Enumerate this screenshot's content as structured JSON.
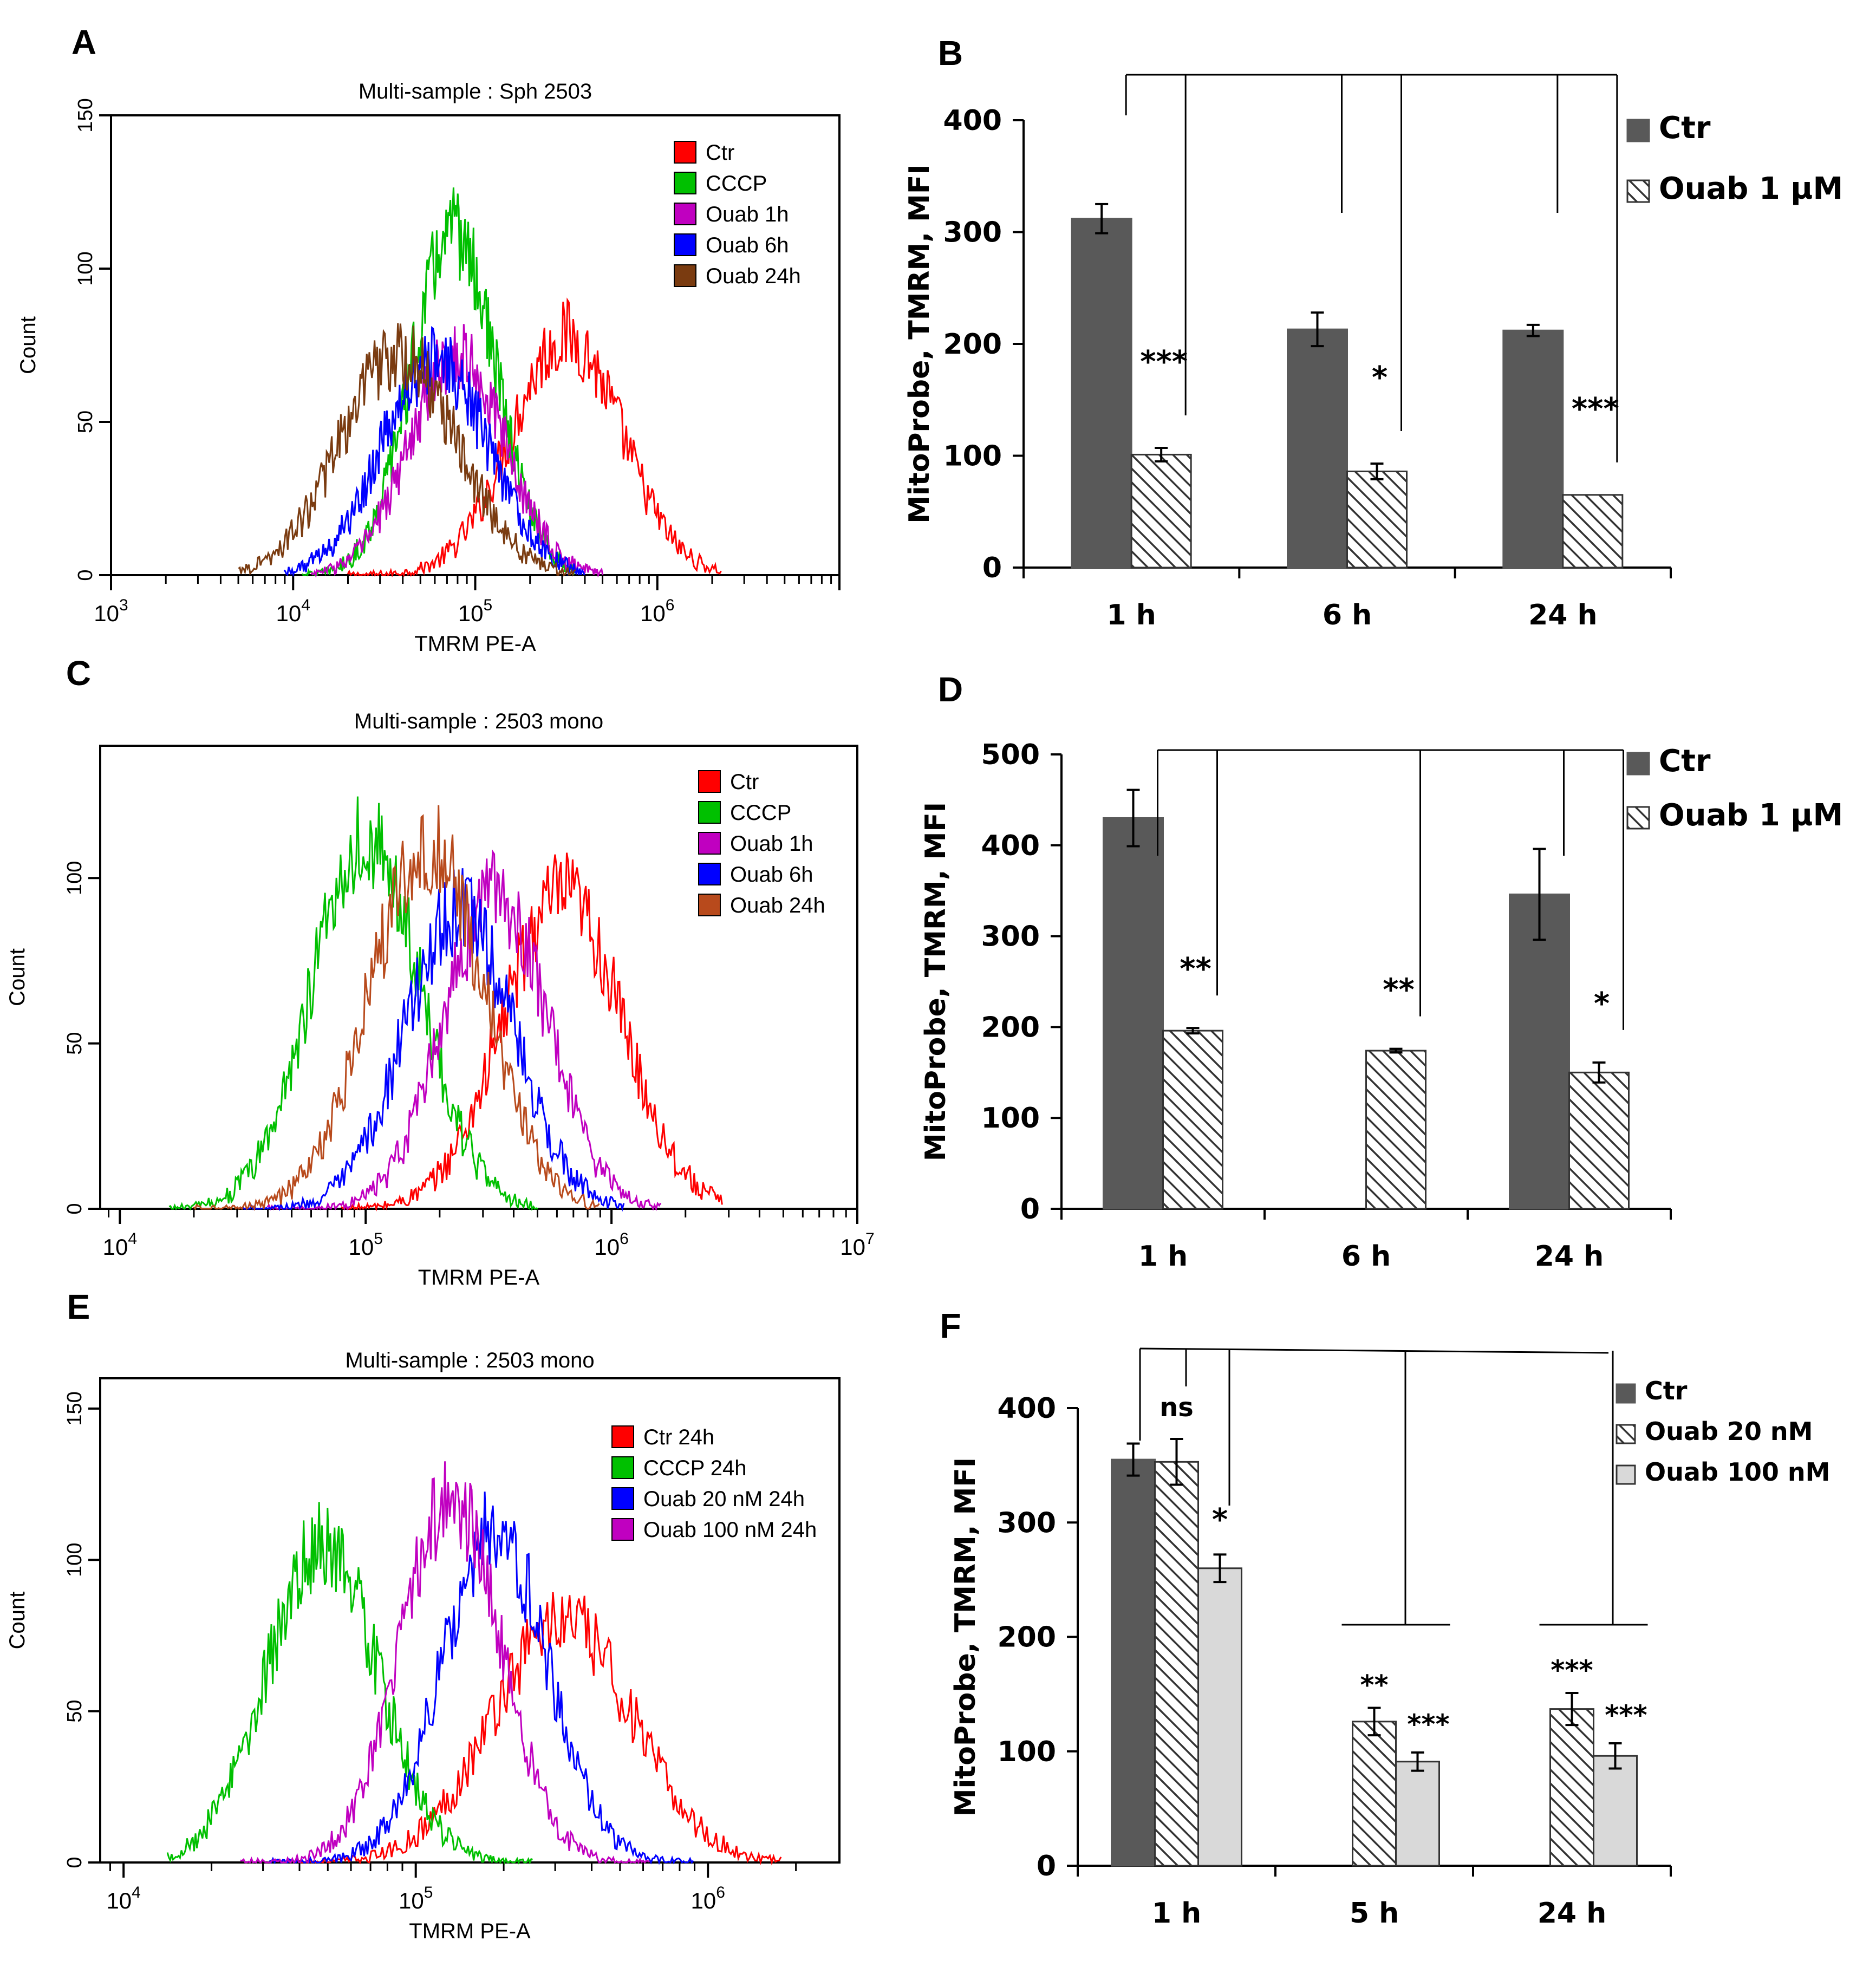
{
  "colors": {
    "ctr_hist": "#ff0000",
    "cccp_hist": "#00c000",
    "ouab1h_hist": "#c000c0",
    "ouab6h_hist": "#0000ff",
    "ouab24h_hist": "#7a3b10",
    "ctr_bar": "#595959",
    "light_bar": "#d9d9d9",
    "hatch_line": "#333333"
  },
  "chart_data": [
    {
      "id": "A",
      "panel_label": "A",
      "type": "line",
      "title": "Multi-sample : Sph 2503",
      "xlabel": "TMRM PE-A",
      "ylabel": "Count",
      "xscale": "log",
      "xlim_log10": [
        3,
        7
      ],
      "xticks": [
        3,
        4,
        5,
        6
      ],
      "ylim": [
        0,
        150
      ],
      "yticks": [
        0,
        50,
        100,
        150
      ],
      "legend_position": "top-right",
      "series": [
        {
          "name": "Ctr",
          "color": "#ff0000",
          "peak_log10": 5.5,
          "width": 0.3,
          "peak": 78,
          "start_log10": 4.3,
          "end_log10": 6.35
        },
        {
          "name": "CCCP",
          "color": "#00c000",
          "peak_log10": 4.88,
          "width": 0.23,
          "peak": 112,
          "start_log10": 4.05,
          "end_log10": 5.55
        },
        {
          "name": "Ouab 1h",
          "color": "#c000c0",
          "peak_log10": 4.9,
          "width": 0.26,
          "peak": 72,
          "start_log10": 4.1,
          "end_log10": 5.7
        },
        {
          "name": "Ouab 6h",
          "color": "#0000ff",
          "peak_log10": 4.78,
          "width": 0.29,
          "peak": 70,
          "start_log10": 3.95,
          "end_log10": 5.6
        },
        {
          "name": "Ouab 24h",
          "color": "#7a3b10",
          "peak_log10": 4.58,
          "width": 0.32,
          "peak": 72,
          "start_log10": 3.7,
          "end_log10": 5.55
        }
      ]
    },
    {
      "id": "B",
      "panel_label": "B",
      "type": "bar",
      "categories": [
        "1 h",
        "6 h",
        "24 h"
      ],
      "ylabel": "MitoProbe, TMRM, MFI",
      "ylim": [
        0,
        400
      ],
      "yticks": [
        0,
        100,
        200,
        300,
        400
      ],
      "legend_position": "top-right",
      "series": [
        {
          "name": "Ctr",
          "style": "solid",
          "values": [
            312,
            213,
            212
          ],
          "errors": [
            13,
            15,
            5
          ]
        },
        {
          "name": "Ouab 1 µM",
          "style": "hatch",
          "values": [
            101,
            86,
            65
          ],
          "errors": [
            6,
            7,
            0
          ]
        }
      ],
      "significance": [
        "***",
        "*",
        "***"
      ]
    },
    {
      "id": "C",
      "panel_label": "C",
      "type": "line",
      "title": "Multi-sample : 2503 mono",
      "xlabel": "TMRM PE-A",
      "ylabel": "Count",
      "xscale": "log",
      "xlim_log10": [
        3.92,
        7
      ],
      "xticks": [
        4,
        5,
        6,
        7
      ],
      "ylim": [
        0,
        140
      ],
      "yticks": [
        0,
        50,
        100
      ],
      "legend_position": "top-right",
      "series": [
        {
          "name": "Ctr",
          "color": "#ff0000",
          "peak_log10": 5.8,
          "width": 0.24,
          "peak": 95,
          "start_log10": 4.9,
          "end_log10": 6.45
        },
        {
          "name": "CCCP",
          "color": "#00c000",
          "peak_log10": 5.0,
          "width": 0.22,
          "peak": 112,
          "start_log10": 4.2,
          "end_log10": 5.7
        },
        {
          "name": "Ouab 1h",
          "color": "#c000c0",
          "peak_log10": 5.53,
          "width": 0.21,
          "peak": 95,
          "start_log10": 4.6,
          "end_log10": 6.2
        },
        {
          "name": "Ouab 6h",
          "color": "#0000ff",
          "peak_log10": 5.38,
          "width": 0.22,
          "peak": 90,
          "start_log10": 4.5,
          "end_log10": 6.05
        },
        {
          "name": "Ouab 24h",
          "color": "#b84a1c",
          "peak_log10": 5.25,
          "width": 0.23,
          "peak": 110,
          "start_log10": 4.3,
          "end_log10": 5.95
        }
      ]
    },
    {
      "id": "D",
      "panel_label": "D",
      "type": "bar",
      "categories": [
        "1 h",
        "6 h",
        "24 h"
      ],
      "ylabel": "MitoProbe, TMRM, MFI",
      "ylim": [
        0,
        500
      ],
      "yticks": [
        0,
        100,
        200,
        300,
        400,
        500
      ],
      "legend_position": "top-right",
      "series": [
        {
          "name": "Ctr",
          "style": "solid",
          "values": [
            430,
            null,
            346
          ],
          "errors": [
            31,
            null,
            50
          ]
        },
        {
          "name": "Ouab 1 µM",
          "style": "hatch",
          "values": [
            196,
            174,
            150
          ],
          "errors": [
            3,
            2,
            11
          ]
        }
      ],
      "significance": [
        "**",
        "**",
        "*"
      ]
    },
    {
      "id": "E",
      "panel_label": "E",
      "type": "line",
      "title": "Multi-sample : 2503 mono",
      "xlabel": "TMRM PE-A",
      "ylabel": "Count",
      "xscale": "log",
      "xlim_log10": [
        3.92,
        6.45
      ],
      "xticks": [
        4,
        5,
        6
      ],
      "ylim": [
        0,
        160
      ],
      "yticks": [
        0,
        50,
        100,
        150
      ],
      "legend_position": "top-right",
      "series": [
        {
          "name": "Ctr 24h",
          "color": "#ff0000",
          "peak_log10": 5.5,
          "width": 0.24,
          "peak": 80,
          "start_log10": 4.6,
          "end_log10": 6.25
        },
        {
          "name": "CCCP 24h",
          "color": "#00c000",
          "peak_log10": 4.68,
          "width": 0.19,
          "peak": 105,
          "start_log10": 4.15,
          "end_log10": 5.4
        },
        {
          "name": "Ouab 20 nM 24h",
          "color": "#0000ff",
          "peak_log10": 5.27,
          "width": 0.18,
          "peak": 110,
          "start_log10": 4.5,
          "end_log10": 5.95
        },
        {
          "name": "Ouab 100 nM 24h",
          "color": "#c000c0",
          "peak_log10": 5.12,
          "width": 0.17,
          "peak": 120,
          "start_log10": 4.4,
          "end_log10": 5.8
        }
      ]
    },
    {
      "id": "F",
      "panel_label": "F",
      "type": "bar",
      "categories": [
        "1 h",
        "5 h",
        "24 h"
      ],
      "ylabel": "MitoProbe, TMRM, MFI",
      "ylim": [
        0,
        400
      ],
      "yticks": [
        0,
        100,
        200,
        300,
        400
      ],
      "legend_position": "top-right",
      "series": [
        {
          "name": "Ctr",
          "style": "solid",
          "values": [
            355,
            null,
            null
          ],
          "errors": [
            14,
            null,
            null
          ]
        },
        {
          "name": "Ouab 20 nM",
          "style": "hatch",
          "values": [
            353,
            126,
            137
          ],
          "errors": [
            20,
            12,
            14
          ]
        },
        {
          "name": "Ouab 100 nM",
          "style": "light",
          "values": [
            260,
            91,
            96
          ],
          "errors": [
            12,
            8,
            11
          ]
        }
      ],
      "significance_20nM": [
        "ns",
        "**",
        "***"
      ],
      "significance_100nM": [
        "*",
        "***",
        "***"
      ]
    }
  ]
}
